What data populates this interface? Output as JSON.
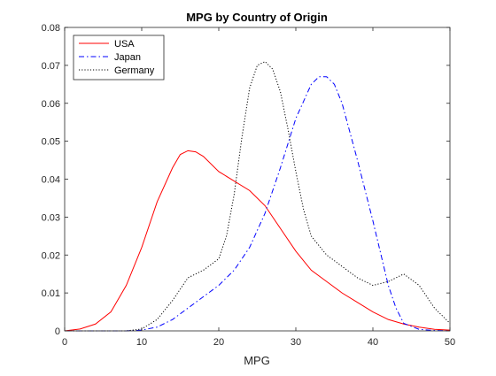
{
  "chart_data": {
    "type": "line",
    "title": "MPG by Country of Origin",
    "xlabel": "MPG",
    "ylabel": "",
    "xlim": [
      0,
      50
    ],
    "ylim": [
      0,
      0.08
    ],
    "xticks": [
      0,
      10,
      20,
      30,
      40,
      50
    ],
    "yticks": [
      0,
      0.01,
      0.02,
      0.03,
      0.04,
      0.05,
      0.06,
      0.07,
      0.08
    ],
    "ytick_labels": [
      "0",
      "0.01",
      "0.02",
      "0.03",
      "0.04",
      "0.05",
      "0.06",
      "0.07",
      "0.08"
    ],
    "grid": false,
    "legend_position": "top-left",
    "series": [
      {
        "name": "USA",
        "color": "#ff0000",
        "style": "solid",
        "x": [
          0,
          2,
          4,
          6,
          8,
          10,
          12,
          14,
          15,
          16,
          17,
          18,
          20,
          22,
          24,
          26,
          28,
          30,
          32,
          34,
          36,
          38,
          40,
          42,
          44,
          46,
          48,
          50
        ],
        "y": [
          0.0,
          0.0005,
          0.0018,
          0.005,
          0.012,
          0.022,
          0.034,
          0.043,
          0.0465,
          0.0475,
          0.0472,
          0.046,
          0.042,
          0.0395,
          0.037,
          0.033,
          0.027,
          0.021,
          0.016,
          0.013,
          0.01,
          0.0075,
          0.005,
          0.003,
          0.0018,
          0.001,
          0.0004,
          0.0002
        ]
      },
      {
        "name": "Japan",
        "color": "#0000ff",
        "style": "dash-dot",
        "x": [
          0,
          8,
          10,
          12,
          14,
          16,
          18,
          20,
          22,
          24,
          26,
          28,
          30,
          32,
          33,
          34,
          35,
          36,
          38,
          40,
          42,
          43,
          44,
          46,
          48,
          50
        ],
        "y": [
          0.0,
          0.0,
          0.0002,
          0.001,
          0.003,
          0.006,
          0.009,
          0.012,
          0.016,
          0.022,
          0.031,
          0.043,
          0.056,
          0.065,
          0.067,
          0.067,
          0.065,
          0.06,
          0.045,
          0.029,
          0.012,
          0.006,
          0.002,
          0.0004,
          0.0001,
          0.0
        ]
      },
      {
        "name": "Germany",
        "color": "#000000",
        "style": "dotted",
        "x": [
          0,
          8,
          10,
          12,
          14,
          16,
          18,
          20,
          21,
          22,
          23,
          24,
          25,
          26,
          27,
          28,
          29,
          30,
          31,
          32,
          34,
          36,
          38,
          40,
          42,
          44,
          46,
          48,
          50
        ],
        "y": [
          0.0,
          0.0,
          0.0005,
          0.003,
          0.008,
          0.014,
          0.016,
          0.019,
          0.025,
          0.036,
          0.051,
          0.064,
          0.07,
          0.071,
          0.069,
          0.063,
          0.053,
          0.042,
          0.032,
          0.025,
          0.02,
          0.017,
          0.014,
          0.012,
          0.013,
          0.015,
          0.012,
          0.006,
          0.002
        ]
      }
    ]
  }
}
